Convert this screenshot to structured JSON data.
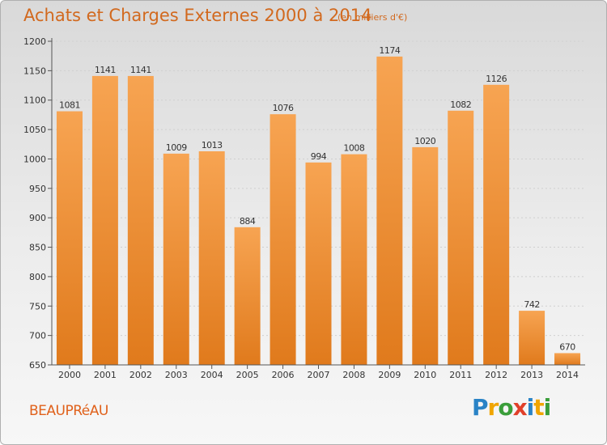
{
  "title": "Achats et Charges Externes 2000 à 2014",
  "subtitle": "(en milliers d'€)",
  "commune": "BEAUPRéAU",
  "logo": {
    "text": "Proxiti",
    "letter_colors": [
      "#2a83c6",
      "#f0a500",
      "#3a9e3a",
      "#e0402a",
      "#2a83c6",
      "#f0a500",
      "#3a9e3a"
    ]
  },
  "colors": {
    "title": "#d2691e",
    "bar_top": "#f7a452",
    "bar_bottom": "#e07a1c",
    "axis": "#555555",
    "grid": "#cfcfcf"
  },
  "chart_data": {
    "type": "bar",
    "title": "Achats et Charges Externes 2000 à 2014",
    "subtitle": "(en milliers d'€)",
    "xlabel": "",
    "ylabel": "",
    "categories": [
      "2000",
      "2001",
      "2002",
      "2003",
      "2004",
      "2005",
      "2006",
      "2007",
      "2008",
      "2009",
      "2010",
      "2011",
      "2012",
      "2013",
      "2014"
    ],
    "values": [
      1081,
      1141,
      1141,
      1009,
      1013,
      884,
      1076,
      994,
      1008,
      1174,
      1020,
      1082,
      1126,
      742,
      670
    ],
    "ylim": [
      650,
      1200
    ],
    "yticks": [
      650,
      700,
      750,
      800,
      850,
      900,
      950,
      1000,
      1050,
      1100,
      1150,
      1200
    ],
    "grid": true,
    "data_labels": true
  }
}
